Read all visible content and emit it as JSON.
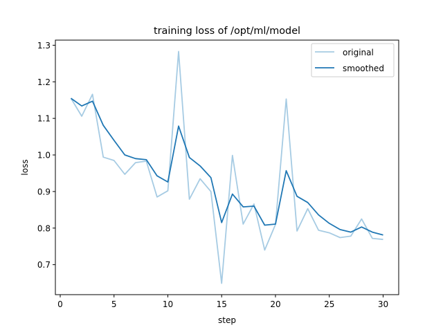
{
  "chart_data": {
    "type": "line",
    "title": "training loss of /opt/ml/model",
    "xlabel": "step",
    "ylabel": "loss",
    "xlim": [
      -0.45,
      31.45
    ],
    "ylim": [
      0.618,
      1.314
    ],
    "xticks": [
      0,
      5,
      10,
      15,
      20,
      25,
      30
    ],
    "yticks": [
      0.7,
      0.8,
      0.9,
      1.0,
      1.1,
      1.2,
      1.3
    ],
    "ytick_labels": [
      "0.7",
      "0.8",
      "0.9",
      "1.0",
      "1.1",
      "1.2",
      "1.3"
    ],
    "grid": false,
    "legend_position": "upper right",
    "x": [
      1,
      2,
      3,
      4,
      5,
      6,
      7,
      8,
      9,
      10,
      11,
      12,
      13,
      14,
      15,
      16,
      17,
      18,
      19,
      20,
      21,
      22,
      23,
      24,
      25,
      26,
      27,
      28,
      29,
      30
    ],
    "series": [
      {
        "name": "original",
        "color": "#a6cbe3",
        "values": [
          1.155,
          1.106,
          1.166,
          0.994,
          0.985,
          0.947,
          0.979,
          0.983,
          0.885,
          0.902,
          1.283,
          0.879,
          0.935,
          0.9,
          0.649,
          0.999,
          0.811,
          0.866,
          0.74,
          0.81,
          1.153,
          0.792,
          0.853,
          0.794,
          0.787,
          0.774,
          0.778,
          0.825,
          0.772,
          0.769
        ]
      },
      {
        "name": "smoothed",
        "color": "#1f77b4",
        "values": [
          1.155,
          1.134,
          1.147,
          1.081,
          1.04,
          1.0,
          0.99,
          0.987,
          0.943,
          0.926,
          1.079,
          0.993,
          0.97,
          0.938,
          0.815,
          0.893,
          0.858,
          0.86,
          0.808,
          0.811,
          0.957,
          0.887,
          0.87,
          0.836,
          0.813,
          0.796,
          0.789,
          0.803,
          0.789,
          0.781
        ]
      }
    ]
  }
}
